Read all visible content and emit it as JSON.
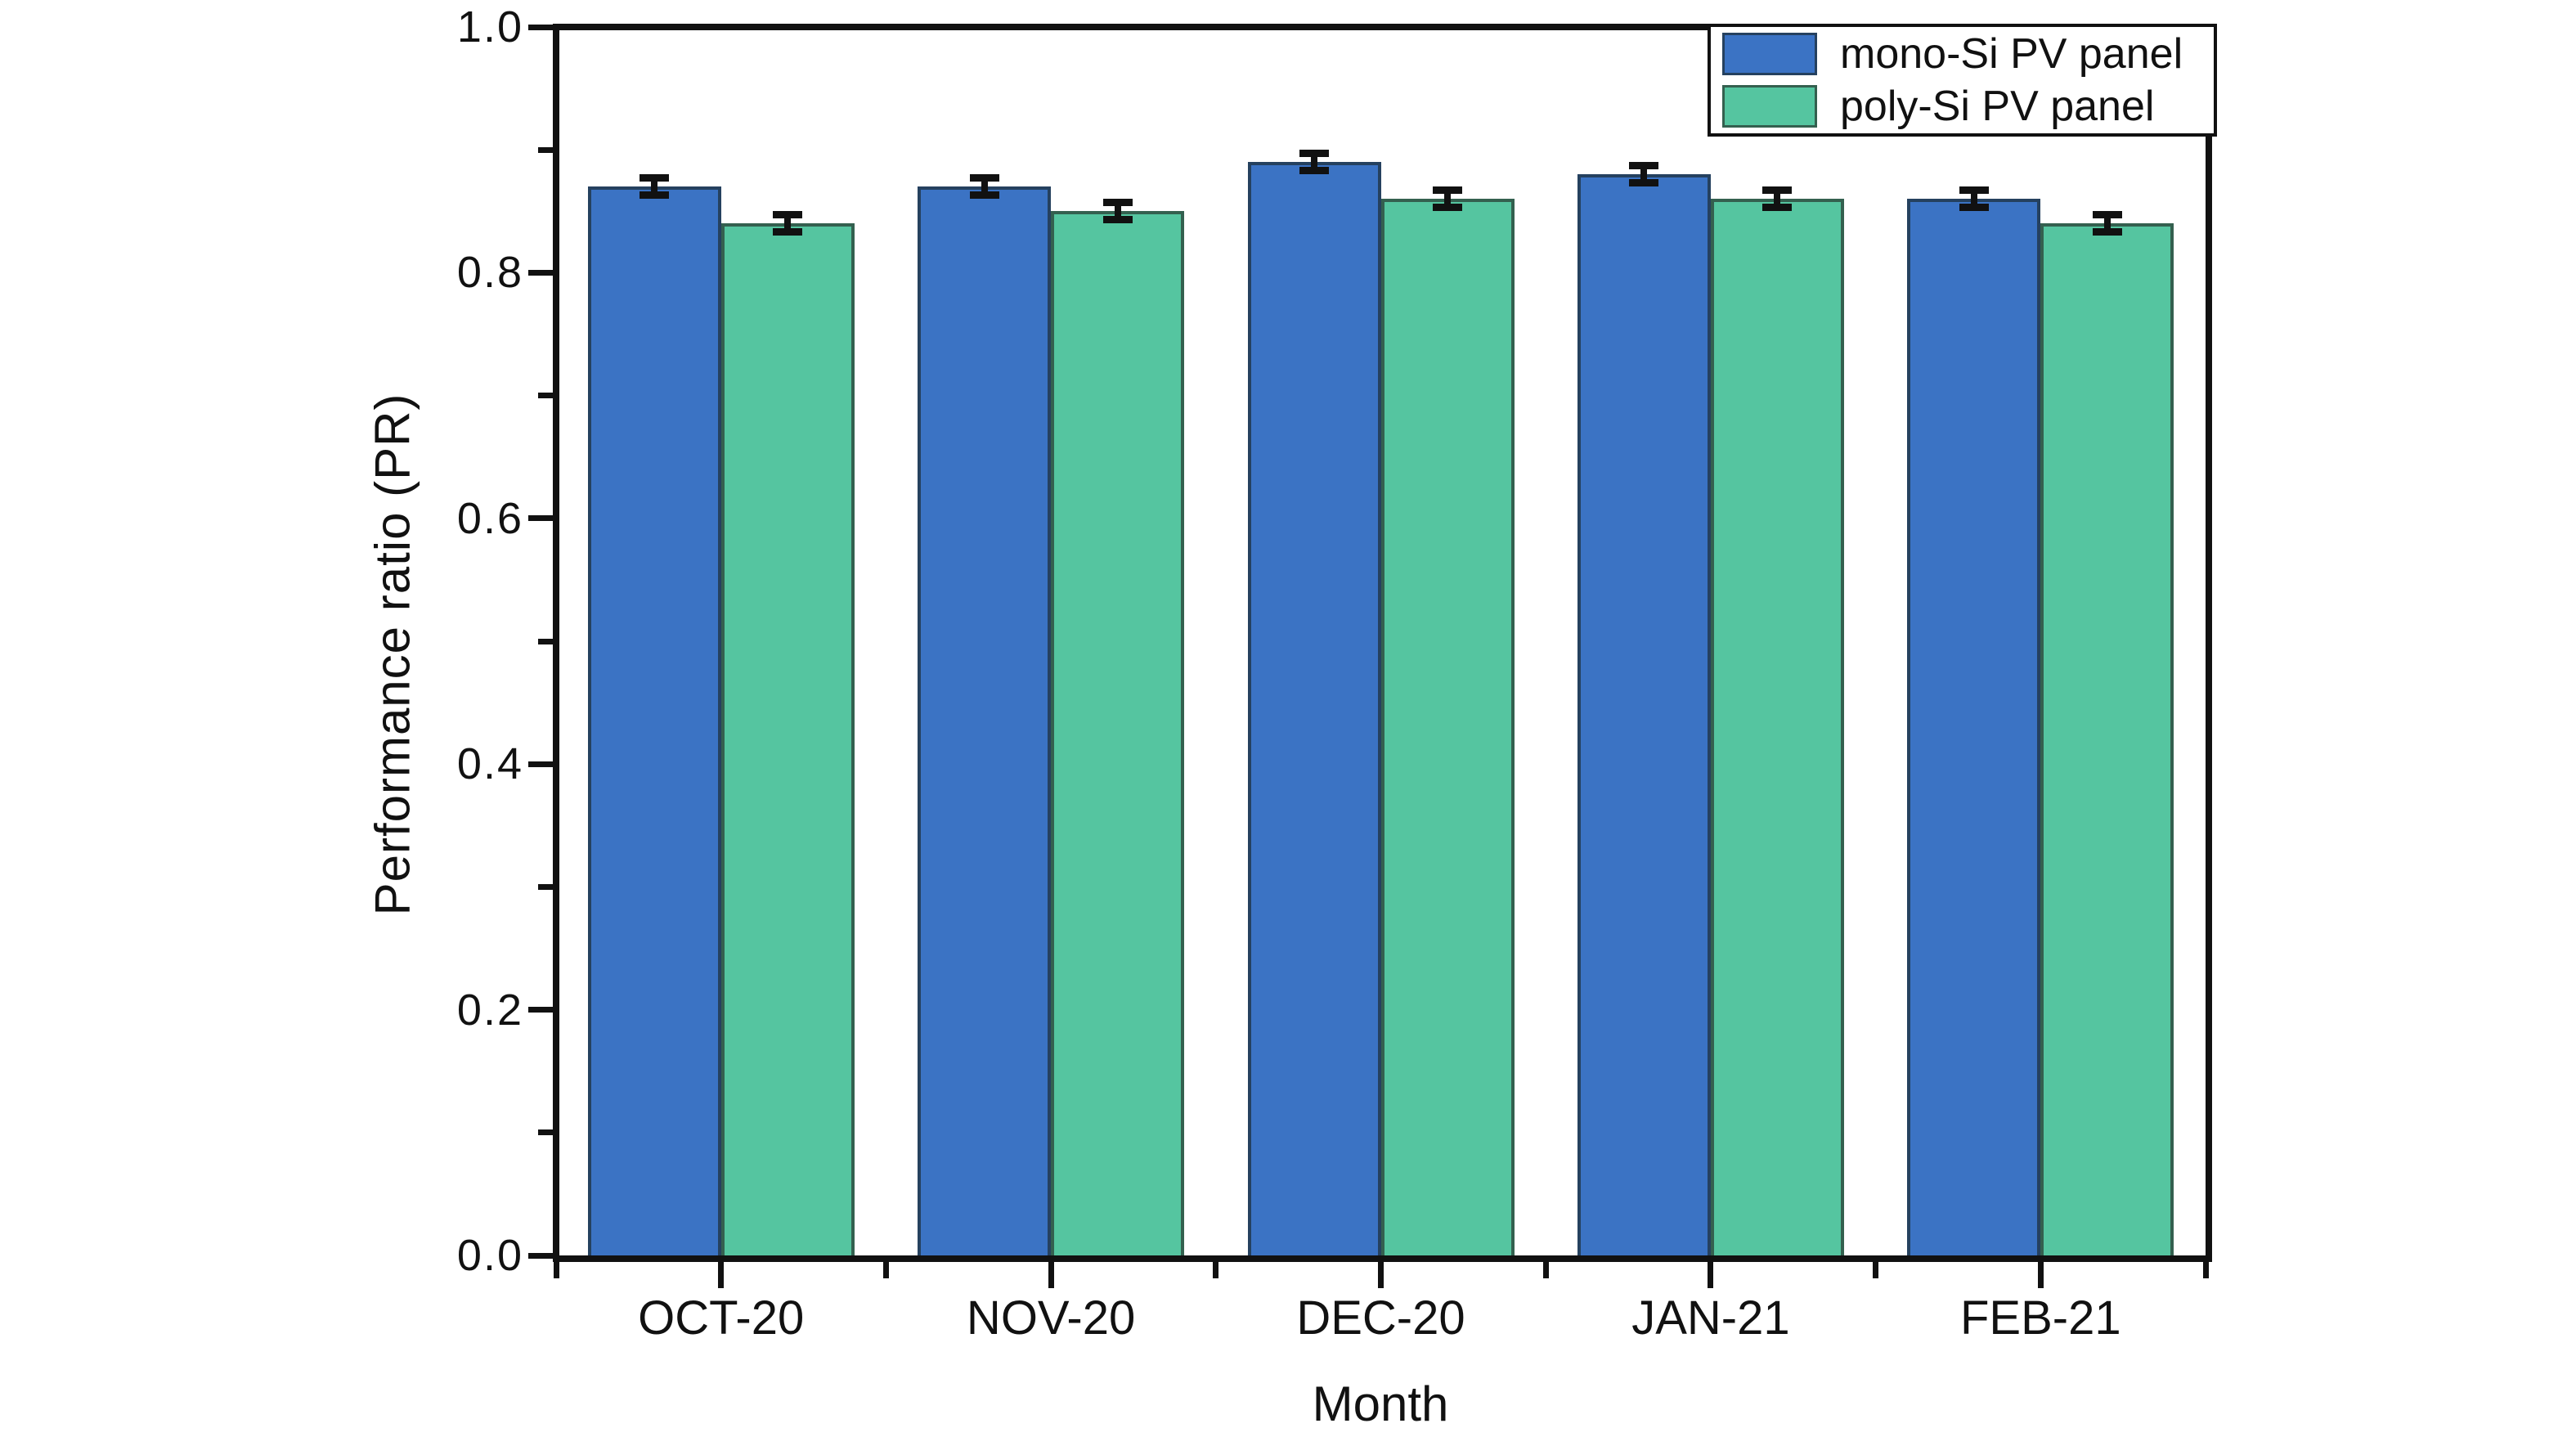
{
  "figure": {
    "background": "#ffffff",
    "axis_color": "#111111",
    "text_color": "#111111"
  },
  "chart_data": {
    "type": "bar",
    "title": "",
    "xlabel": "Month",
    "ylabel": "Performance ratio (PR)",
    "categories": [
      "OCT-20",
      "NOV-20",
      "DEC-20",
      "JAN-21",
      "FEB-21"
    ],
    "series": [
      {
        "name": "mono-Si PV panel",
        "color": "#3b73c4",
        "edge_color": "#25415f",
        "values": [
          0.87,
          0.87,
          0.89,
          0.88,
          0.86
        ],
        "errors": [
          0.007,
          0.007,
          0.007,
          0.007,
          0.007
        ]
      },
      {
        "name": "poly-Si PV panel",
        "color": "#55c5a0",
        "edge_color": "#34604f",
        "values": [
          0.84,
          0.85,
          0.86,
          0.86,
          0.84
        ],
        "errors": [
          0.007,
          0.007,
          0.007,
          0.007,
          0.007
        ]
      }
    ],
    "ylim": [
      0.0,
      1.0
    ],
    "yticks": [
      0.0,
      0.2,
      0.4,
      0.6,
      0.8,
      1.0
    ],
    "ytick_labels": [
      "0.0",
      "0.2",
      "0.4",
      "0.6",
      "0.8",
      "1.0"
    ],
    "minor_yticks": [
      0.1,
      0.3,
      0.5,
      0.7,
      0.9
    ],
    "grid": false,
    "legend_position": "top-right",
    "error_bar_color": "#111111"
  }
}
